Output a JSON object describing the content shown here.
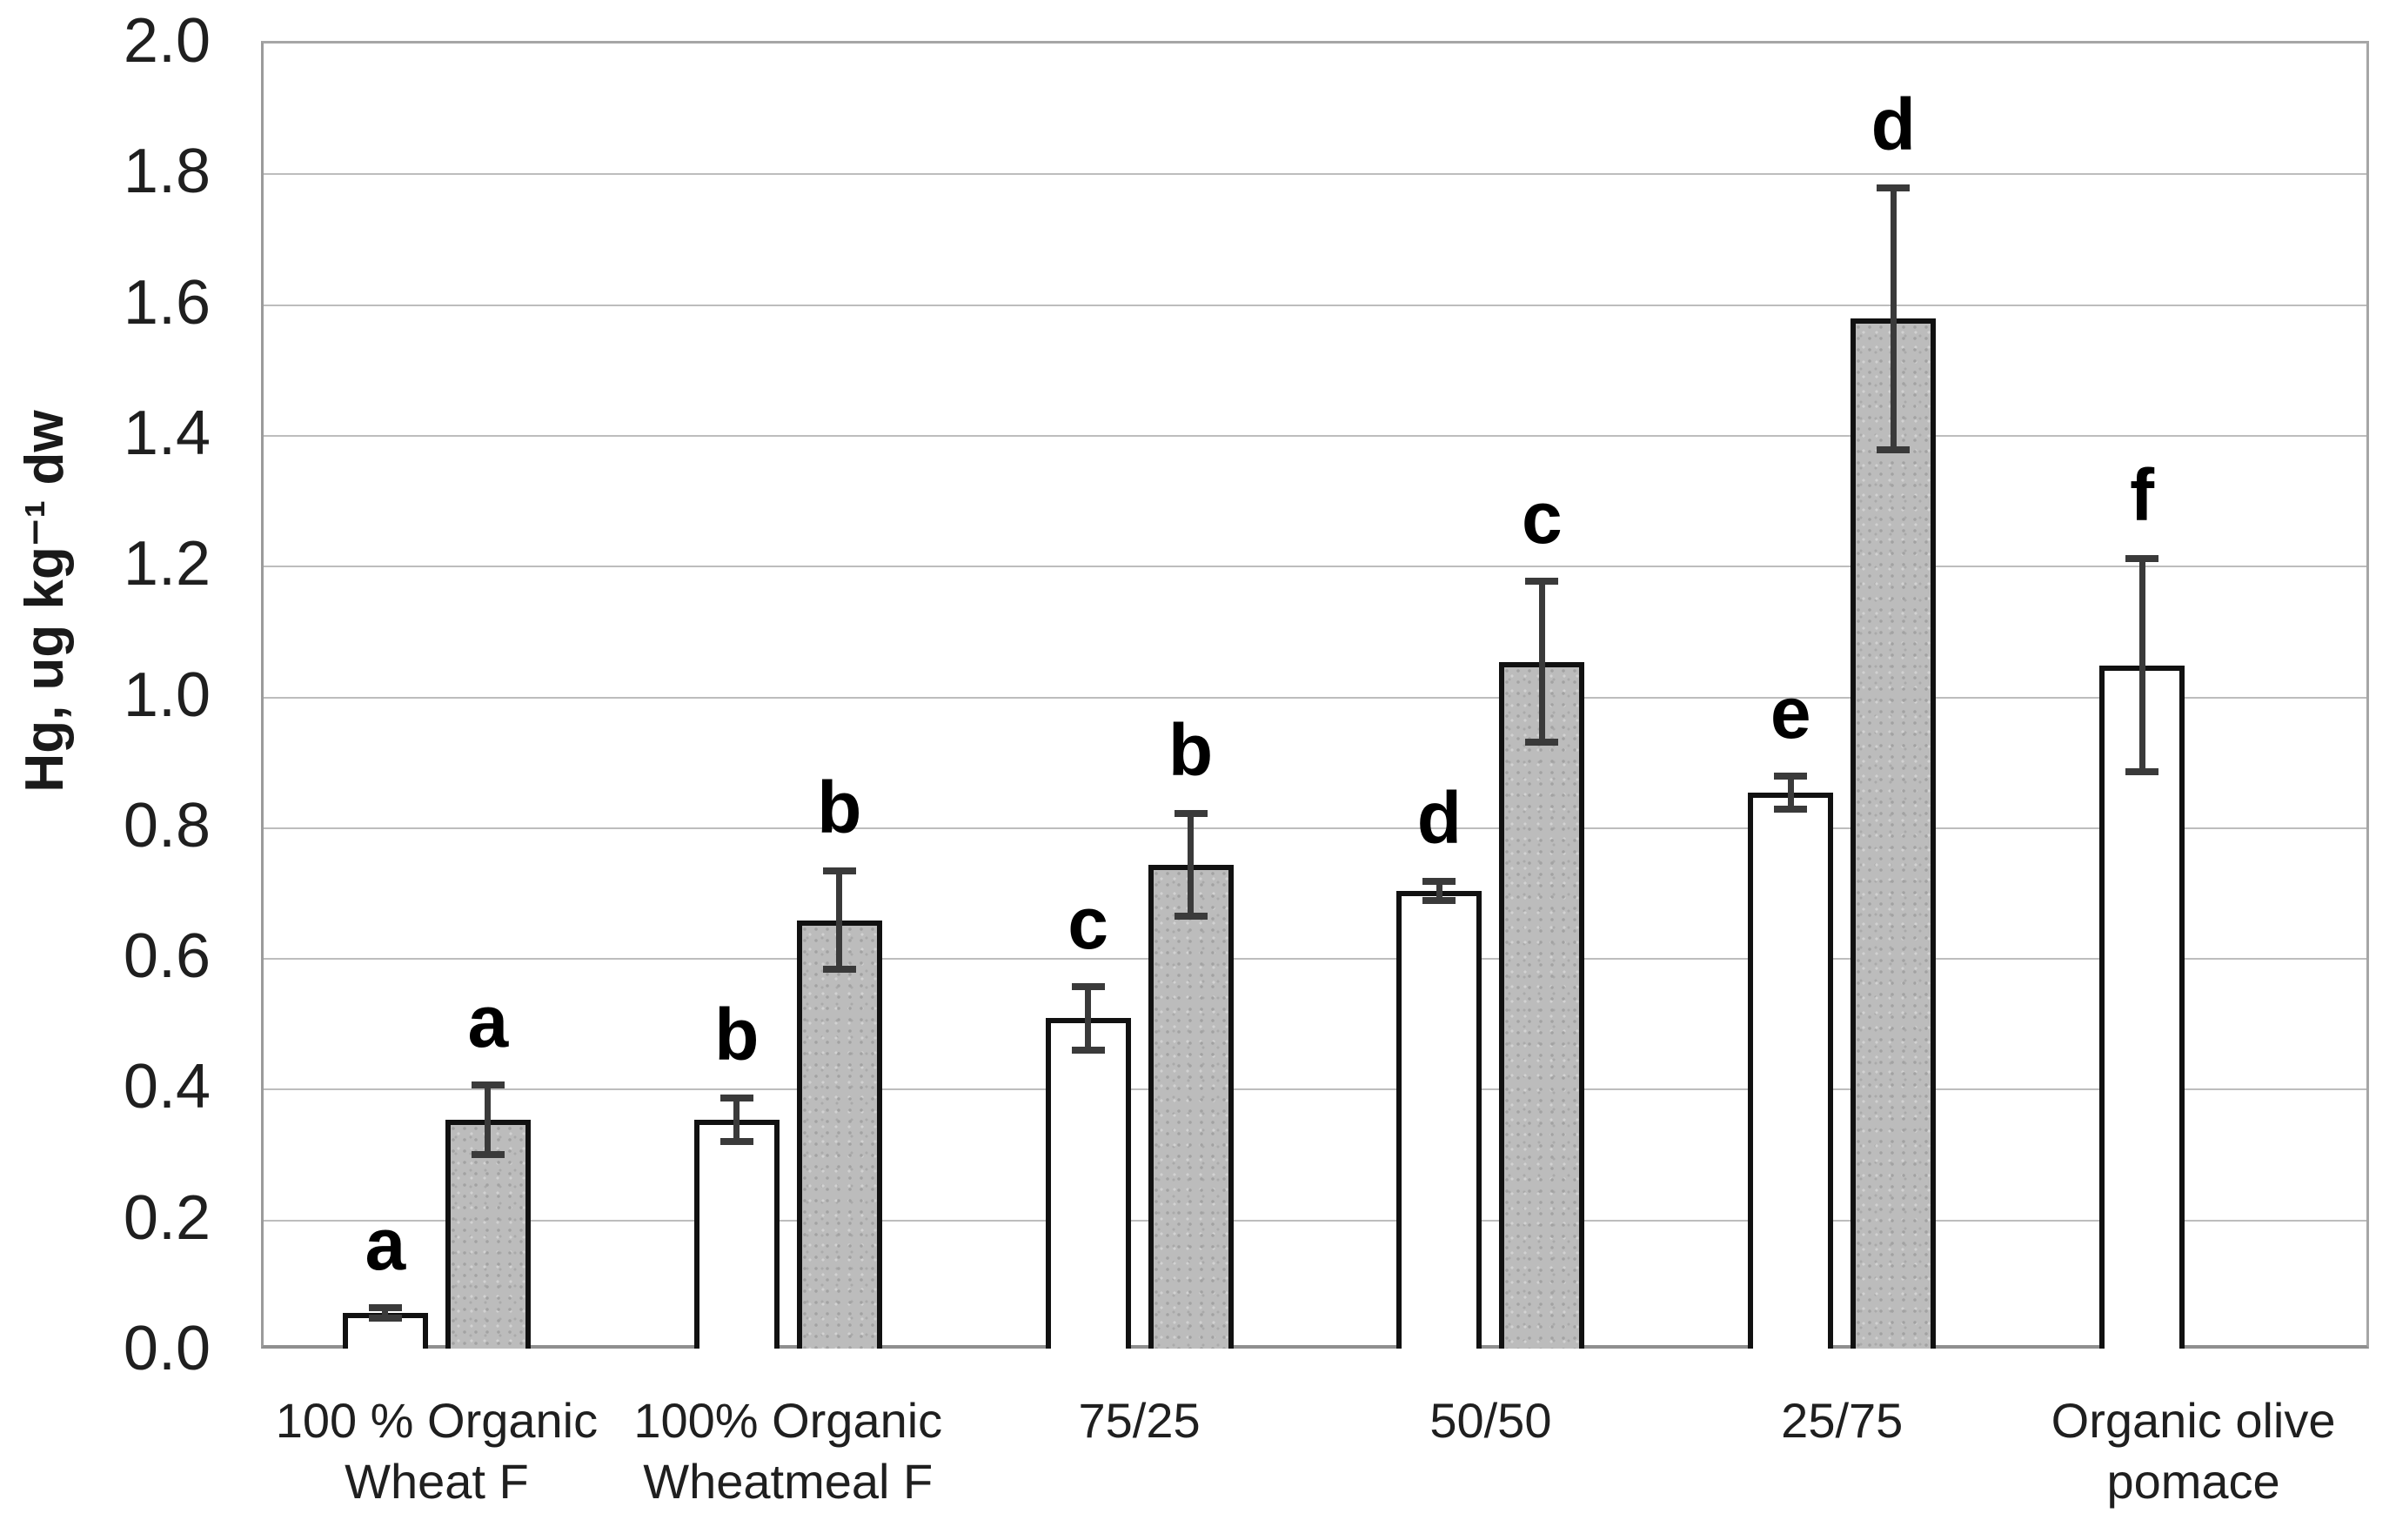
{
  "chart_data": {
    "type": "bar",
    "title": "",
    "xlabel": "",
    "ylabel": "Hg, ug kg⁻¹ dw",
    "ylim": [
      0.0,
      2.0
    ],
    "ytick_step": 0.2,
    "yticks": [
      "0.0",
      "0.2",
      "0.4",
      "0.6",
      "0.8",
      "1.0",
      "1.2",
      "1.4",
      "1.6",
      "1.8",
      "2.0"
    ],
    "grid": true,
    "legend_position": "none",
    "categories": [
      "100 % Organic\nWheat F",
      "100% Organic\nWheatmeal F",
      "75/25",
      "50/50",
      "25/75",
      "Organic olive\npomace"
    ],
    "series": [
      {
        "name": "white",
        "fill": "#ffffff",
        "values": [
          0.055,
          0.35,
          0.505,
          0.7,
          0.85,
          1.045
        ],
        "errors": [
          0.008,
          0.033,
          0.048,
          0.015,
          0.025,
          0.163
        ],
        "letters": [
          "a",
          "b",
          "c",
          "d",
          "e",
          "f"
        ]
      },
      {
        "name": "gray",
        "fill": "#bcbcbc",
        "values": [
          0.35,
          0.655,
          0.74,
          1.05,
          1.575,
          null
        ],
        "errors": [
          0.053,
          0.075,
          0.078,
          0.123,
          0.2,
          null
        ],
        "letters": [
          "a",
          "b",
          "b",
          "c",
          "d",
          null
        ]
      }
    ],
    "colors": {
      "bar_border": "#111111",
      "error_bar": "#3a3a3a",
      "gridline": "#bdbdbd",
      "axis": "#9b9b9b",
      "text": "#1f1f1f"
    }
  }
}
